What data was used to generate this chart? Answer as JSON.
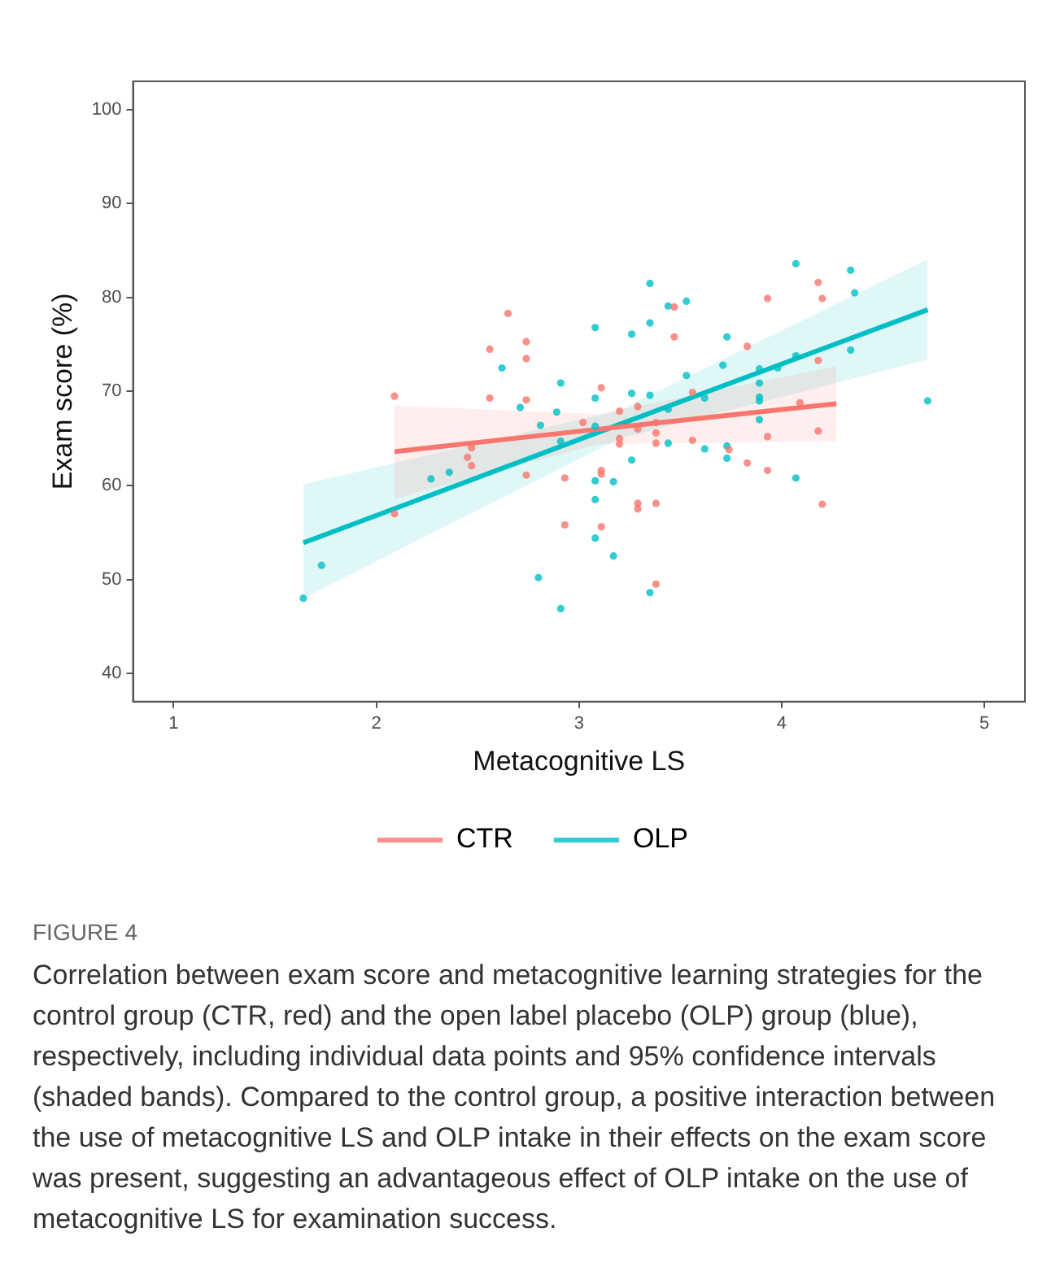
{
  "chart_data": {
    "type": "scatter",
    "xlabel": "Metacognitive LS",
    "ylabel": "Exam score (%)",
    "xlim": [
      0.8,
      5.2
    ],
    "xticks": [
      1,
      2,
      3,
      4,
      5
    ],
    "ylim": [
      37,
      103
    ],
    "yticks": [
      40,
      50,
      60,
      70,
      80,
      90,
      100
    ],
    "grid": false,
    "legend": "bottom",
    "marker": "circle",
    "series": [
      {
        "name": "CTR",
        "color": "#f8766d",
        "x": [
          2.65,
          2.56,
          2.74,
          2.74,
          2.09,
          2.56,
          2.74,
          2.47,
          2.45,
          2.47,
          2.74,
          2.09,
          3.47,
          3.93,
          4.18,
          4.2,
          3.47,
          3.83,
          3.11,
          3.56,
          3.2,
          3.29,
          3.02,
          4.18,
          4.09,
          3.38,
          3.29,
          3.38,
          3.38,
          3.2,
          3.2,
          3.56,
          3.93,
          4.18,
          3.74,
          3.83,
          3.93,
          3.11,
          3.11,
          2.93,
          3.29,
          3.29,
          3.38,
          4.2,
          2.93,
          3.11,
          3.38
        ],
        "values": [
          78.3,
          74.5,
          75.3,
          73.5,
          69.5,
          69.3,
          69.1,
          64.0,
          63.0,
          62.1,
          61.1,
          57.0,
          79.0,
          79.9,
          81.6,
          79.9,
          75.8,
          74.8,
          70.4,
          69.9,
          67.9,
          68.4,
          66.7,
          73.3,
          68.8,
          66.7,
          66.0,
          65.6,
          64.5,
          65.0,
          64.4,
          64.8,
          65.2,
          65.8,
          63.8,
          62.4,
          61.6,
          61.6,
          61.2,
          60.8,
          58.1,
          57.5,
          58.1,
          58.0,
          55.8,
          55.6,
          49.5
        ]
      },
      {
        "name": "OLP",
        "color": "#00bfc4",
        "x": [
          2.62,
          2.71,
          2.27,
          2.36,
          1.73,
          1.64,
          4.07,
          4.34,
          4.36,
          3.35,
          3.44,
          3.53,
          3.08,
          3.26,
          3.35,
          3.73,
          4.34,
          4.07,
          3.98,
          3.89,
          3.71,
          3.53,
          2.91,
          3.89,
          3.26,
          3.35,
          3.08,
          3.62,
          3.89,
          3.89,
          2.89,
          3.44,
          4.72,
          2.81,
          3.08,
          3.89,
          2.91,
          3.44,
          3.62,
          3.73,
          3.73,
          3.26,
          3.08,
          3.17,
          3.08,
          4.07,
          3.08,
          3.17,
          2.8,
          3.35,
          2.91
        ],
        "values": [
          72.5,
          68.3,
          60.7,
          61.4,
          51.5,
          48.0,
          83.6,
          82.9,
          80.5,
          81.5,
          79.1,
          79.6,
          76.8,
          76.1,
          77.3,
          75.8,
          74.4,
          73.8,
          72.5,
          72.4,
          72.8,
          71.7,
          70.9,
          70.9,
          69.8,
          69.6,
          69.3,
          69.3,
          69.4,
          69.0,
          67.8,
          68.1,
          69.0,
          66.4,
          66.3,
          67.0,
          64.7,
          64.5,
          63.9,
          64.2,
          62.9,
          62.7,
          60.5,
          60.4,
          58.5,
          60.8,
          54.4,
          52.5,
          50.2,
          48.6,
          46.9
        ]
      },
      {
        "type": "line",
        "marker": "none",
        "color": "#f8766d",
        "x": [
          2.09,
          3.1,
          4.27
        ],
        "values": [
          63.6,
          66.0,
          68.7
        ],
        "lower": [
          58.6,
          64.4,
          64.7
        ],
        "upper": [
          68.5,
          67.6,
          72.7
        ]
      },
      {
        "type": "line",
        "marker": "none",
        "color": "#00bfc4",
        "x": [
          1.64,
          3.2,
          4.72
        ],
        "values": [
          53.9,
          66.5,
          78.7
        ],
        "lower": [
          48.0,
          65.0,
          73.4
        ],
        "upper": [
          60.1,
          68.0,
          84.1
        ]
      }
    ],
    "annotations": [
      "FIGURE 4",
      "Correlation between exam score and metacognitive learning strategies for the control group (CTR, red) and the open label placebo (OLP) group (blue), respectively, including individual data points and 95% confidence intervals (shaded bands). Compared to the control group, a positive interaction between the use of metacognitive LS and OLP intake in their effects on the exam score was present, suggesting an advantageous effect of OLP intake on the use of metacognitive LS for examination success."
    ]
  }
}
